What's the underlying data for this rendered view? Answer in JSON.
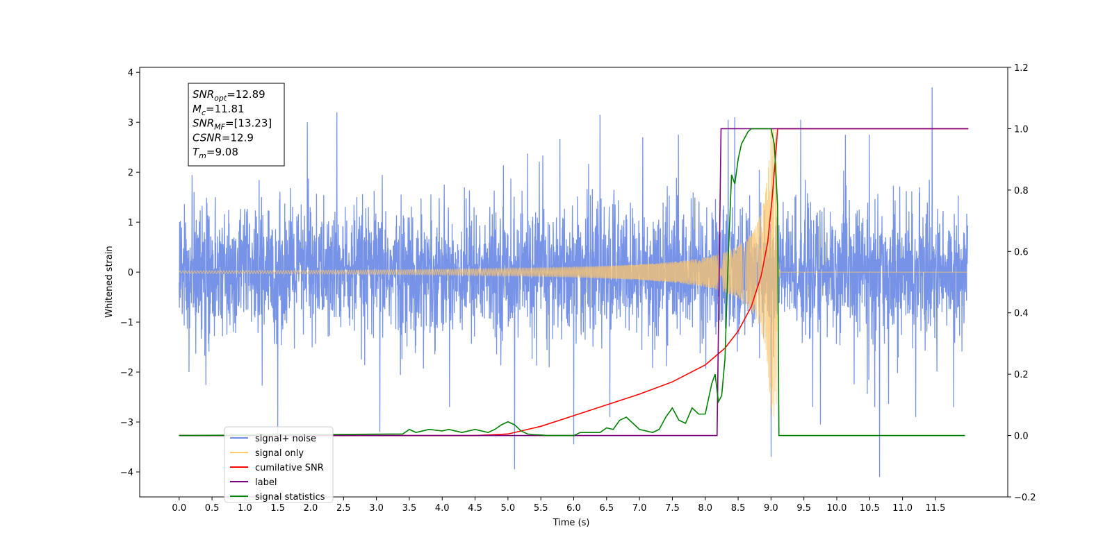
{
  "chart_data": {
    "type": "line",
    "xlabel": "Time (s)",
    "ylabel": "Whitened strain",
    "xlim": [
      -0.6,
      12.6
    ],
    "ylim": [
      -4.5,
      4.1
    ],
    "y2lim": [
      -0.2,
      1.2
    ],
    "x_ticks": [
      "0.0",
      "0.5",
      "1.0",
      "1.5",
      "2.0",
      "2.5",
      "3.0",
      "3.5",
      "4.0",
      "4.5",
      "5.0",
      "5.5",
      "6.0",
      "6.5",
      "7.0",
      "7.5",
      "8.0",
      "8.5",
      "9.0",
      "9.5",
      "10.0",
      "10.5",
      "11.0",
      "11.5"
    ],
    "y_ticks": [
      "−4",
      "−3",
      "−2",
      "−1",
      "0",
      "1",
      "2",
      "3",
      "4"
    ],
    "y2_ticks": [
      "−0.2",
      "0.0",
      "0.2",
      "0.4",
      "0.6",
      "0.8",
      "1.0",
      "1.2"
    ],
    "stats": [
      {
        "main": "SNR",
        "sub": "opt",
        "value": "=12.89"
      },
      {
        "main": "M",
        "sub": "c",
        "value": "=11.81"
      },
      {
        "main": "SNR",
        "sub": "MF",
        "value": "=[13.23]"
      },
      {
        "main": "CSNR",
        "sub": "",
        "value": "=12.9"
      },
      {
        "main": "T",
        "sub": "m",
        "value": "=9.08"
      }
    ],
    "noise_model": {
      "t_start": 0.0,
      "t_end": 11.99,
      "typical_amplitude": 1.4,
      "spikes": [
        {
          "t": 5.1,
          "y": -3.95
        },
        {
          "t": 6.0,
          "y": -3.45
        },
        {
          "t": 9.0,
          "y": -3.7
        },
        {
          "t": 10.65,
          "y": -4.1
        },
        {
          "t": 11.45,
          "y": 3.7
        },
        {
          "t": 1.5,
          "y": -3.3
        },
        {
          "t": 3.05,
          "y": -3.2
        },
        {
          "t": 0.15,
          "y": -2.0
        },
        {
          "t": 2.4,
          "y": 3.2
        },
        {
          "t": 8.35,
          "y": 3.05
        },
        {
          "t": 8.45,
          "y": 3.1
        },
        {
          "t": 9.45,
          "y": 3.05
        },
        {
          "t": 9.75,
          "y": -3.05
        },
        {
          "t": 7.05,
          "y": 2.7
        },
        {
          "t": 1.95,
          "y": 3.0
        },
        {
          "t": 6.4,
          "y": 3.15
        },
        {
          "t": 6.55,
          "y": -2.9
        },
        {
          "t": 11.2,
          "y": -2.9
        }
      ]
    },
    "chirp_model": {
      "t_merger": 9.08,
      "amp_start": 0.02,
      "amp_peak": 2.9
    },
    "series": [
      {
        "name": "signal+ noise",
        "color": "#6f8de6",
        "axis": "left"
      },
      {
        "name": "signal only",
        "color": "#ffc66b",
        "axis": "left"
      },
      {
        "name": "cumilative SNR",
        "color": "#ff0000",
        "axis": "right",
        "x": [
          0.0,
          4.5,
          5.0,
          5.5,
          6.0,
          6.5,
          7.0,
          7.5,
          8.0,
          8.3,
          8.5,
          8.7,
          8.85,
          8.95,
          9.02,
          9.08,
          9.1,
          12.0
        ],
        "y": [
          0.0,
          0.0,
          0.005,
          0.03,
          0.065,
          0.1,
          0.135,
          0.175,
          0.23,
          0.285,
          0.34,
          0.42,
          0.52,
          0.63,
          0.78,
          0.94,
          1.0,
          1.0
        ]
      },
      {
        "name": "label",
        "color": "#7b007b",
        "axis": "right",
        "x": [
          0.0,
          8.18,
          8.24,
          12.0
        ],
        "y": [
          0.0,
          0.0,
          1.0,
          1.0
        ]
      },
      {
        "name": "signal statistics",
        "color": "#008000",
        "axis": "right",
        "x": [
          0.0,
          3.4,
          3.5,
          3.6,
          3.7,
          3.8,
          4.0,
          4.1,
          4.2,
          4.3,
          4.4,
          4.5,
          4.6,
          4.7,
          4.8,
          4.9,
          5.0,
          5.1,
          5.2,
          5.3,
          5.4,
          5.5,
          5.6,
          5.8,
          6.0,
          6.1,
          6.2,
          6.4,
          6.5,
          6.6,
          6.7,
          6.8,
          6.9,
          7.0,
          7.1,
          7.2,
          7.3,
          7.4,
          7.5,
          7.6,
          7.7,
          7.8,
          7.9,
          8.0,
          8.05,
          8.1,
          8.15,
          8.2,
          8.25,
          8.3,
          8.35,
          8.4,
          8.45,
          8.5,
          8.55,
          8.6,
          8.65,
          8.7,
          8.8,
          8.9,
          9.0,
          9.05,
          9.1,
          9.12,
          11.95
        ],
        "y": [
          0.0,
          0.005,
          0.02,
          0.01,
          0.015,
          0.02,
          0.015,
          0.02,
          0.015,
          0.01,
          0.015,
          0.02,
          0.015,
          0.01,
          0.02,
          0.035,
          0.045,
          0.035,
          0.015,
          0.005,
          0.003,
          0.002,
          0.0,
          0.0,
          0.0,
          0.01,
          0.01,
          0.01,
          0.025,
          0.02,
          0.05,
          0.06,
          0.04,
          0.02,
          0.015,
          0.01,
          0.02,
          0.06,
          0.09,
          0.05,
          0.04,
          0.09,
          0.07,
          0.07,
          0.12,
          0.17,
          0.2,
          0.11,
          0.13,
          0.25,
          0.58,
          0.85,
          0.82,
          0.9,
          0.95,
          0.97,
          0.99,
          1.0,
          1.0,
          1.0,
          1.0,
          0.95,
          0.75,
          0.0,
          0.0
        ]
      }
    ],
    "legend": {
      "location": "lower-left"
    },
    "grid": false
  }
}
